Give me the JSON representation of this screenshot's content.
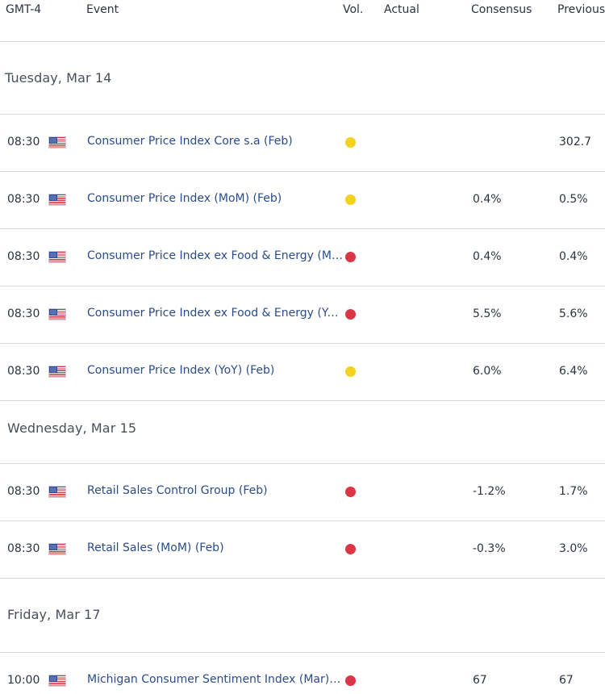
{
  "header": {
    "timezone": "GMT-4",
    "event": "Event",
    "vol": "Vol.",
    "actual": "Actual",
    "consensus": "Consensus",
    "previous": "Previous"
  },
  "colors": {
    "medium": "#f2d21c",
    "high": "#dc3545",
    "event_link": "#2a4c8a"
  },
  "days": [
    {
      "label": "Tuesday, Mar 14",
      "events": [
        {
          "time": "08:30",
          "flag": "us-flag-icon",
          "event": "Consumer Price Index Core s.a (Feb)",
          "vol": "medium",
          "actual": "",
          "consensus": "",
          "previous": "302.7"
        },
        {
          "time": "08:30",
          "flag": "us-flag-icon",
          "event": "Consumer Price Index (MoM) (Feb)",
          "vol": "medium",
          "actual": "",
          "consensus": "0.4%",
          "previous": "0.5%"
        },
        {
          "time": "08:30",
          "flag": "us-flag-icon",
          "event": "Consumer Price Index ex Food & Energy (Mo…",
          "vol": "high",
          "actual": "",
          "consensus": "0.4%",
          "previous": "0.4%"
        },
        {
          "time": "08:30",
          "flag": "us-flag-icon",
          "event": "Consumer Price Index ex Food & Energy (YoY…",
          "vol": "high",
          "actual": "",
          "consensus": "5.5%",
          "previous": "5.6%"
        },
        {
          "time": "08:30",
          "flag": "us-flag-icon",
          "event": "Consumer Price Index (YoY) (Feb)",
          "vol": "medium",
          "actual": "",
          "consensus": "6.0%",
          "previous": "6.4%"
        }
      ]
    },
    {
      "label": "Wednesday, Mar 15",
      "events": [
        {
          "time": "08:30",
          "flag": "us-flag-icon",
          "event": "Retail Sales Control Group (Feb)",
          "vol": "high",
          "actual": "",
          "consensus": "-1.2%",
          "previous": "1.7%"
        },
        {
          "time": "08:30",
          "flag": "us-flag-icon",
          "event": "Retail Sales (MoM) (Feb)",
          "vol": "high",
          "actual": "",
          "consensus": "-0.3%",
          "previous": "3.0%"
        }
      ]
    },
    {
      "label": "Friday, Mar 17",
      "events": [
        {
          "time": "10:00",
          "flag": "us-flag-icon",
          "event": "Michigan Consumer Sentiment Index (Mar)P…",
          "vol": "high",
          "actual": "",
          "consensus": "67",
          "previous": "67"
        }
      ]
    }
  ]
}
